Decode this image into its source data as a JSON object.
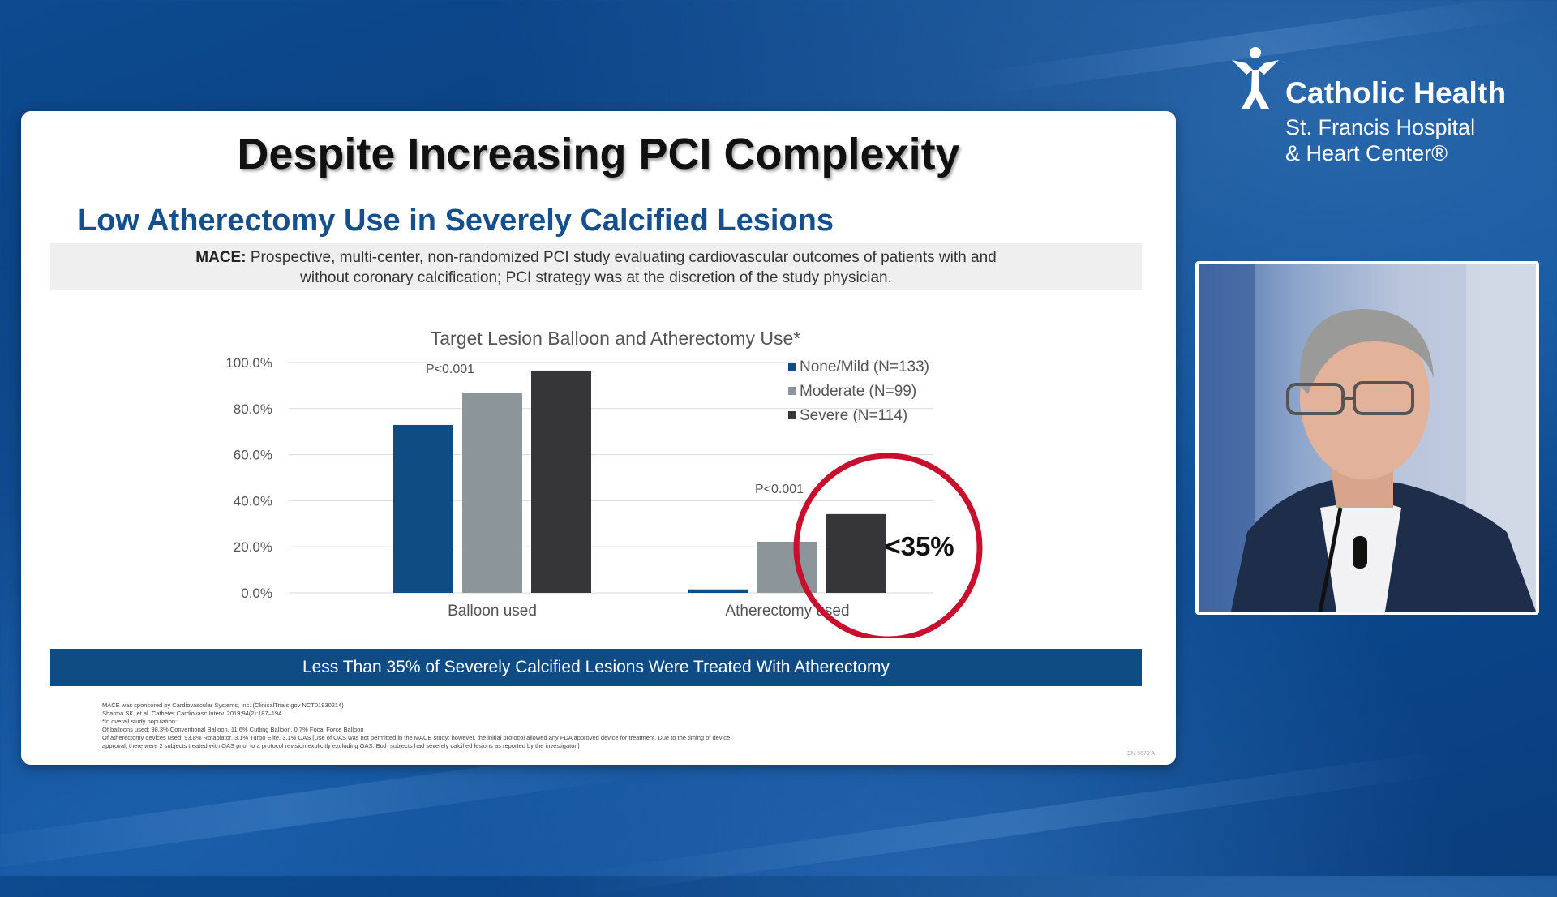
{
  "logo": {
    "line1": "Catholic Health",
    "line2": "St. Francis Hospital",
    "line3": "& Heart Center®"
  },
  "slide": {
    "title": "Despite Increasing PCI Complexity",
    "subtitle": "Low Atherectomy Use in Severely Calcified Lesions",
    "mace_label": "MACE:",
    "mace_text_line1": "Prospective, multi-center, non-randomized PCI study evaluating cardiovascular outcomes of patients with and",
    "mace_text_line2": "without coronary calcification; PCI strategy was at the discretion of the study physician.",
    "banner": "Less Than 35% of Severely Calcified Lesions Were Treated With Atherectomy",
    "footnotes": [
      "MACE was sponsored by Cardiovascular Systems, Inc. (ClinicalTrials.gov NCT01930214)",
      "Sharma SK, et al. Catheter Cardiovasc Interv. 2019;94(2):187–194.",
      "*In overall study population:",
      "Of balloons used: 98.3% Conventional Balloon, 11.6% Cutting Balloon, 0.7% Focal Force Balloon",
      "Of atherectomy devices used: 93.8% Rotablator, 3.1% Turbo Elite, 3.1% OAS [Use of OAS was not permitted in the MACE study; however, the initial protocol allowed any FDA approved device for treatment. Due to the timing of device",
      "approval, there were 2 subjects treated with OAS prior to a protocol revision explicitly excluding OAS. Both subjects had severely calcified lesions as reported by the investigator.]"
    ],
    "code": "EN-5679 A"
  },
  "chart_data": {
    "type": "bar",
    "title": "Target Lesion Balloon and Atherectomy Use*",
    "categories": [
      "Balloon used",
      "Atherectomy used"
    ],
    "series": [
      {
        "name": "None/Mild (N=133)",
        "values": [
          72.9,
          1.5
        ],
        "color": "#0f4c84"
      },
      {
        "name": "Moderate (N=99)",
        "values": [
          86.9,
          22.2
        ],
        "color": "#8c9599"
      },
      {
        "name": "Severe (N=114)",
        "values": [
          96.5,
          34.2
        ],
        "color": "#363638"
      }
    ],
    "yticks": [
      "100.0%",
      "80.0%",
      "60.0%",
      "40.0%",
      "20.0%",
      "0.0%"
    ],
    "ylim": [
      0,
      100
    ],
    "grid": true,
    "legend_position": "top-right",
    "annotations": [
      "P<0.001",
      "P<0.001"
    ],
    "callout": "<35%",
    "callout_color": "#c8102e"
  }
}
